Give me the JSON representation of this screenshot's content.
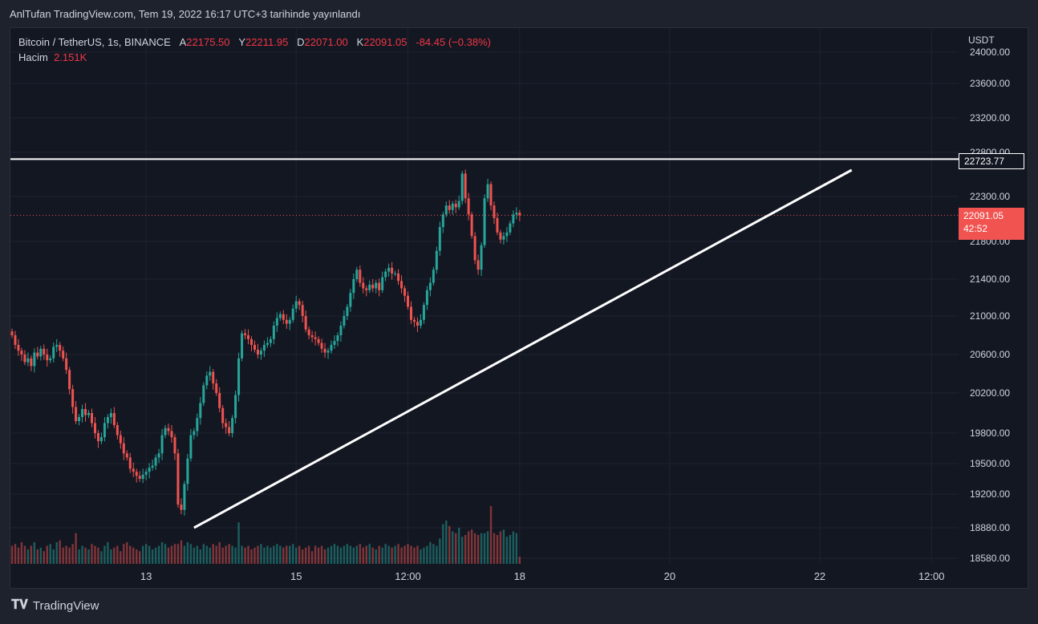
{
  "header": {
    "published": "AnlTufan TradingView.com, Tem 19, 2022 16:17 UTC+3 tarihinde yayınlandı"
  },
  "legend": {
    "symbol": "Bitcoin / TetherUS, 1s, BINANCE",
    "o_label": "A",
    "o_value": "22175.50",
    "h_label": "Y",
    "h_value": "22211.95",
    "l_label": "D",
    "l_value": "22071.00",
    "c_label": "K",
    "c_value": "22091.05",
    "change": "-84.45 (−0.38%)",
    "volume_label": "Hacim",
    "volume_value": "2.151K"
  },
  "currency": "USDT",
  "tags": {
    "resistance": "22723.77",
    "last_price": "22091.05",
    "countdown": "42:52"
  },
  "footer": {
    "brand": "TradingView"
  },
  "colors": {
    "up": "#26a69a",
    "down": "#ef5350",
    "bg": "#131722",
    "grid": "#1f2330"
  },
  "chart_data": {
    "type": "candlestick",
    "symbol": "Bitcoin / TetherUS",
    "interval": "1s",
    "y_ticks": [
      24000,
      23600,
      23200,
      22800,
      22300,
      21800,
      21400,
      21000,
      20600,
      20200,
      19800,
      19500,
      19200,
      18880,
      18580
    ],
    "y_tick_labels": [
      "24000.00",
      "23600.00",
      "23200.00",
      "22800.00",
      "22300.00",
      "21800.00",
      "21400.00",
      "21000.00",
      "20600.00",
      "20200.00",
      "19800.00",
      "19500.00",
      "19200.00",
      "18880.00",
      "18580.00"
    ],
    "x_ticks": [
      "13",
      "15",
      "12:00",
      "18",
      "20",
      "22",
      "12:00"
    ],
    "x_tick_index": [
      42,
      89,
      124,
      159,
      206,
      253,
      288
    ],
    "candles_close_series": [
      20800,
      20700,
      20640,
      20600,
      20520,
      20560,
      20480,
      20620,
      20580,
      20660,
      20600,
      20540,
      20560,
      20680,
      20700,
      20640,
      20560,
      20440,
      20240,
      20060,
      19920,
      19960,
      20040,
      19980,
      20000,
      19900,
      19800,
      19720,
      19760,
      19900,
      19960,
      20000,
      19880,
      19780,
      19700,
      19600,
      19560,
      19450,
      19420,
      19380,
      19350,
      19390,
      19420,
      19460,
      19480,
      19560,
      19600,
      19780,
      19850,
      19820,
      19760,
      19600,
      19100,
      19050,
      19300,
      19550,
      19780,
      19820,
      19950,
      20100,
      20280,
      20380,
      20420,
      20300,
      20200,
      20050,
      19900,
      19860,
      19800,
      19950,
      20180,
      20560,
      20820,
      20800,
      20760,
      20700,
      20650,
      20600,
      20640,
      20700,
      20720,
      20760,
      20900,
      20980,
      21020,
      20960,
      20920,
      20960,
      21080,
      21160,
      21120,
      21000,
      20860,
      20800,
      20780,
      20760,
      20720,
      20660,
      20620,
      20640,
      20700,
      20740,
      20800,
      20900,
      21000,
      21100,
      21250,
      21400,
      21500,
      21360,
      21300,
      21280,
      21340,
      21300,
      21360,
      21280,
      21420,
      21480,
      21520,
      21460,
      21460,
      21380,
      21300,
      21220,
      21100,
      20960,
      20940,
      20900,
      20960,
      21120,
      21280,
      21360,
      21500,
      21700,
      21960,
      22100,
      22200,
      22150,
      22220,
      22180,
      22250,
      22560,
      22280,
      22100,
      21860,
      21600,
      21500,
      21760,
      22280,
      22440,
      22200,
      22060,
      21900,
      21820,
      21860,
      21900,
      22000,
      22100,
      22120,
      22091
    ],
    "volume_series": [
      0.5,
      0.55,
      0.45,
      0.6,
      0.5,
      0.4,
      0.5,
      0.6,
      0.4,
      0.45,
      0.35,
      0.5,
      0.55,
      0.4,
      0.6,
      0.65,
      0.45,
      0.5,
      0.45,
      0.55,
      0.85,
      0.4,
      0.5,
      0.45,
      0.4,
      0.55,
      0.5,
      0.45,
      0.35,
      0.5,
      0.6,
      0.4,
      0.45,
      0.5,
      0.35,
      0.55,
      0.6,
      0.5,
      0.45,
      0.4,
      0.35,
      0.5,
      0.55,
      0.5,
      0.4,
      0.45,
      0.5,
      0.6,
      0.55,
      0.45,
      0.5,
      0.55,
      0.55,
      0.65,
      0.5,
      0.6,
      0.55,
      0.45,
      0.5,
      0.4,
      0.55,
      0.5,
      0.45,
      0.55,
      0.5,
      0.6,
      0.45,
      0.5,
      0.55,
      0.5,
      0.45,
      1.15,
      0.5,
      0.45,
      0.5,
      0.4,
      0.45,
      0.5,
      0.55,
      0.45,
      0.5,
      0.45,
      0.5,
      0.55,
      0.5,
      0.45,
      0.5,
      0.5,
      0.55,
      0.45,
      0.5,
      0.4,
      0.45,
      0.5,
      0.35,
      0.5,
      0.45,
      0.5,
      0.4,
      0.45,
      0.5,
      0.55,
      0.5,
      0.45,
      0.5,
      0.55,
      0.5,
      0.45,
      0.5,
      0.55,
      0.45,
      0.5,
      0.55,
      0.45,
      0.4,
      0.5,
      0.45,
      0.55,
      0.5,
      0.45,
      0.5,
      0.55,
      0.45,
      0.5,
      0.55,
      0.5,
      0.45,
      0.5,
      0.4,
      0.45,
      0.5,
      0.6,
      0.55,
      0.5,
      0.7,
      1.1,
      1.2,
      1.05,
      0.9,
      0.85,
      1.0,
      0.75,
      0.8,
      0.9,
      0.95,
      0.85,
      0.8,
      0.85,
      0.85,
      0.9,
      1.6,
      0.85,
      0.8,
      0.9,
      0.95,
      0.75,
      0.8,
      0.9,
      0.85,
      0.2
    ]
  }
}
